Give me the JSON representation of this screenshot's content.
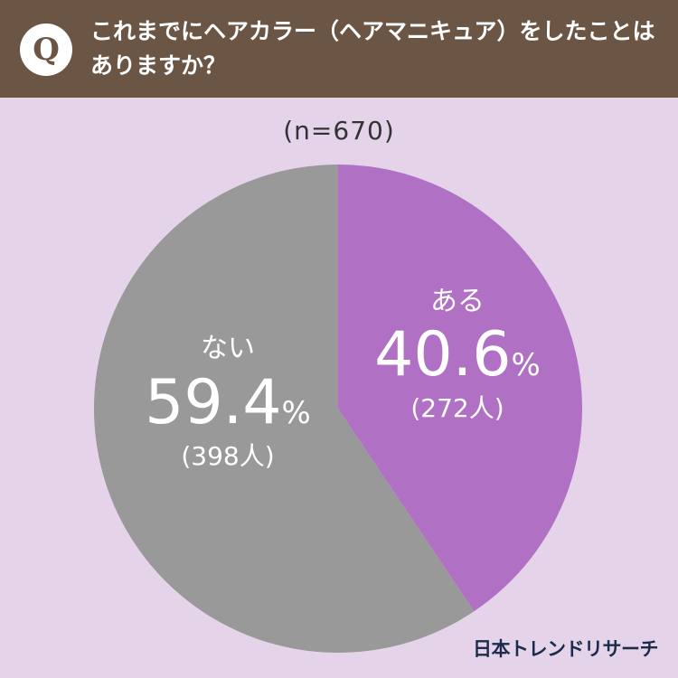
{
  "question": {
    "badge": "Q",
    "line1": "これまでにヘアカラー（ヘアマニキュア）をしたことは",
    "line2": "ありますか？"
  },
  "sample_size": "(n=670)",
  "brand": "日本トレンドリサーチ",
  "colors": {
    "header": "#6b5545",
    "background": "#e5d3ea",
    "aru": "#b071c4",
    "nai": "#999999"
  },
  "chart_data": {
    "type": "pie",
    "categories": [
      "ある",
      "ない"
    ],
    "values": [
      40.6,
      59.4
    ],
    "value_labels": [
      "40.6%",
      "59.4%"
    ],
    "counts": [
      272,
      398
    ],
    "count_labels": [
      "(272人)",
      "(398人)"
    ],
    "colors": [
      "#b071c4",
      "#999999"
    ],
    "start": "12 o'clock",
    "direction": "clockwise"
  }
}
